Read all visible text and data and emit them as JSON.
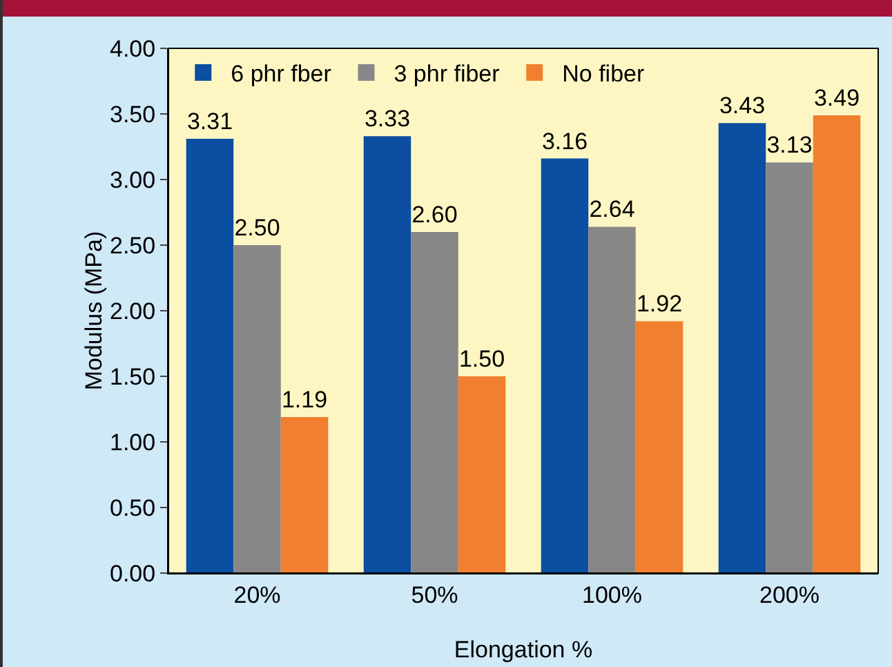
{
  "chart_data": {
    "type": "bar",
    "xlabel": "Elongation %",
    "ylabel": "Modulus (MPa)",
    "categories": [
      "20%",
      "50%",
      "100%",
      "200%"
    ],
    "series": [
      {
        "name": "6 phr fber",
        "color": "#0b4ea2",
        "values": [
          3.31,
          3.33,
          3.16,
          3.43
        ],
        "value_labels": [
          "3.31",
          "3.33",
          "3.16",
          "3.43"
        ]
      },
      {
        "name": "3 phr fiber",
        "color": "#878787",
        "values": [
          2.5,
          2.6,
          2.64,
          3.13
        ],
        "value_labels": [
          "2.50",
          "2.60",
          "2.64",
          "3.13"
        ]
      },
      {
        "name": "No fiber",
        "color": "#f07f2f",
        "values": [
          1.19,
          1.5,
          1.92,
          3.49
        ],
        "value_labels": [
          "1.19",
          "1.50",
          "1.92",
          "3.49"
        ]
      }
    ],
    "ylim": [
      0,
      4
    ],
    "yticks": [
      {
        "value": 0,
        "label": "0.00"
      },
      {
        "value": 0.5,
        "label": "0.50"
      },
      {
        "value": 1,
        "label": "1.00"
      },
      {
        "value": 1.5,
        "label": "1.50"
      },
      {
        "value": 2,
        "label": "2.00"
      },
      {
        "value": 2.5,
        "label": "2.50"
      },
      {
        "value": 3,
        "label": "3.00"
      },
      {
        "value": 3.5,
        "label": "3.50"
      },
      {
        "value": 4,
        "label": "4.00"
      }
    ],
    "grid": false,
    "legend": "top left"
  }
}
